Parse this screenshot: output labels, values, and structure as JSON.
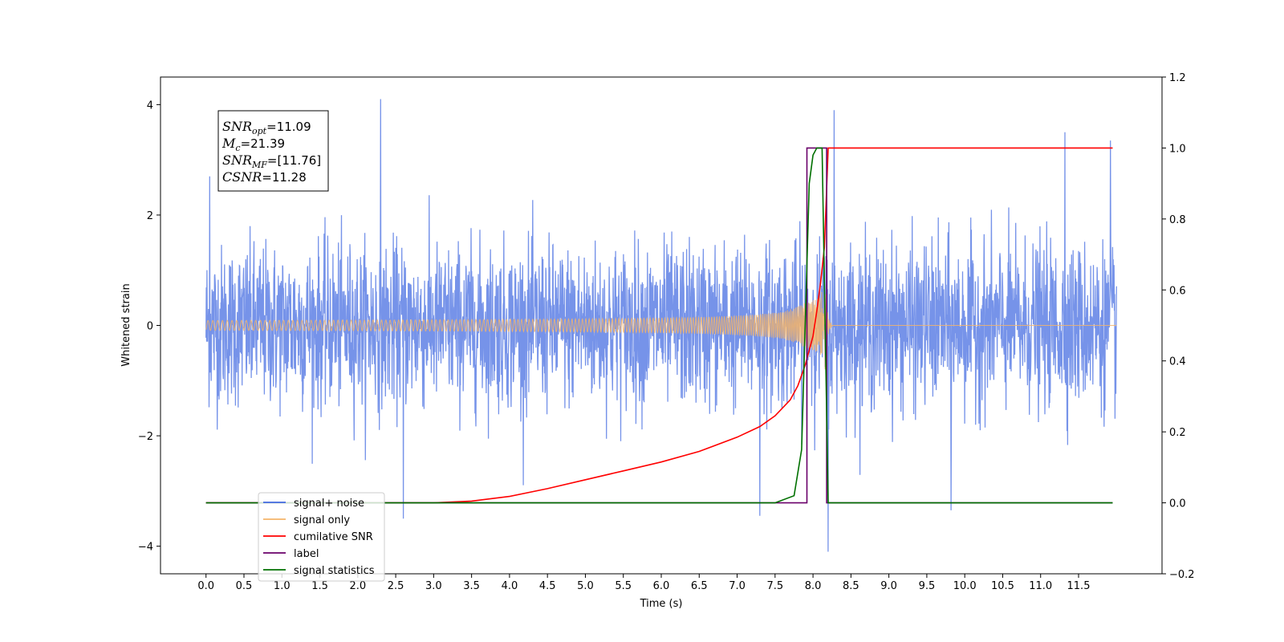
{
  "chart_data": {
    "type": "line",
    "title": "",
    "xlabel": "Time (s)",
    "ylabel": "Whitened strain",
    "y2label": "",
    "xlim": [
      -0.6,
      12.6
    ],
    "ylim": [
      -4.5,
      4.5
    ],
    "y2lim": [
      -0.2,
      1.2
    ],
    "xticks": [
      "0.0",
      "0.5",
      "1.0",
      "1.5",
      "2.0",
      "2.5",
      "3.0",
      "3.5",
      "4.0",
      "4.5",
      "5.0",
      "5.5",
      "6.0",
      "6.5",
      "7.0",
      "7.5",
      "8.0",
      "8.5",
      "9.0",
      "9.5",
      "10.0",
      "10.5",
      "11.0",
      "11.5"
    ],
    "yticks": [
      "4",
      "2",
      "0",
      "−2",
      "−4"
    ],
    "y2ticks": [
      "1.2",
      "1.0",
      "0.8",
      "0.6",
      "0.4",
      "0.2",
      "0.0",
      "−0.2"
    ],
    "grid": false,
    "legend_position": "lower-left",
    "annotation": {
      "lines": [
        {
          "name": "SNR",
          "sub": "opt",
          "value": "=11.09"
        },
        {
          "name": "M",
          "sub": "c",
          "value": "=21.39"
        },
        {
          "name": "SNR",
          "sub": "MF",
          "value": "=[11.76]"
        },
        {
          "name": "CSNR",
          "sub": "",
          "value": "=11.28"
        }
      ]
    },
    "series": [
      {
        "name": "signal+ noise",
        "axis": "left",
        "color": "#4169e1",
        "kind": "noise",
        "x_range": [
          0,
          12
        ],
        "typical_envelope": 1.5,
        "peaks": [
          [
            0.05,
            2.7
          ],
          [
            2.3,
            4.1
          ],
          [
            2.6,
            -3.5
          ],
          [
            7.3,
            -3.45
          ],
          [
            8.2,
            -4.1
          ],
          [
            8.28,
            3.9
          ],
          [
            9.82,
            -3.35
          ],
          [
            11.32,
            3.5
          ],
          [
            11.92,
            3.35
          ]
        ]
      },
      {
        "name": "signal only",
        "axis": "left",
        "color": "#f4b469",
        "kind": "chirp",
        "t_merge": 8.15,
        "amplitude_at_merge": 1.3
      },
      {
        "name": "cumilative SNR",
        "axis": "right",
        "color": "#ff0000",
        "x": [
          0,
          3.0,
          3.5,
          4.0,
          4.5,
          5.0,
          5.5,
          6.0,
          6.5,
          7.0,
          7.3,
          7.5,
          7.7,
          7.8,
          7.9,
          8.0,
          8.05,
          8.1,
          8.15,
          8.2,
          11.95
        ],
        "values": [
          0,
          0,
          0.005,
          0.018,
          0.04,
          0.065,
          0.09,
          0.115,
          0.145,
          0.185,
          0.215,
          0.245,
          0.29,
          0.33,
          0.39,
          0.47,
          0.54,
          0.62,
          0.72,
          1.0,
          1.0
        ]
      },
      {
        "name": "label",
        "axis": "right",
        "color": "#6a006a",
        "x": [
          0,
          7.92,
          7.92,
          8.18,
          8.18,
          11.95
        ],
        "values": [
          0,
          0,
          1,
          1,
          0,
          0
        ]
      },
      {
        "name": "signal statistics",
        "axis": "right",
        "color": "#007000",
        "x": [
          0,
          7.5,
          7.75,
          7.85,
          7.95,
          8.0,
          8.05,
          8.12,
          8.2,
          8.25,
          11.95
        ],
        "values": [
          0,
          0,
          0.02,
          0.15,
          0.9,
          0.98,
          1.0,
          1.0,
          0,
          0,
          0
        ]
      }
    ],
    "legend": [
      {
        "label": "signal+ noise",
        "color": "#4169e1"
      },
      {
        "label": "signal only",
        "color": "#f4b469"
      },
      {
        "label": "cumilative SNR",
        "color": "#ff0000"
      },
      {
        "label": "label",
        "color": "#6a006a"
      },
      {
        "label": "signal statistics",
        "color": "#007000"
      }
    ]
  }
}
